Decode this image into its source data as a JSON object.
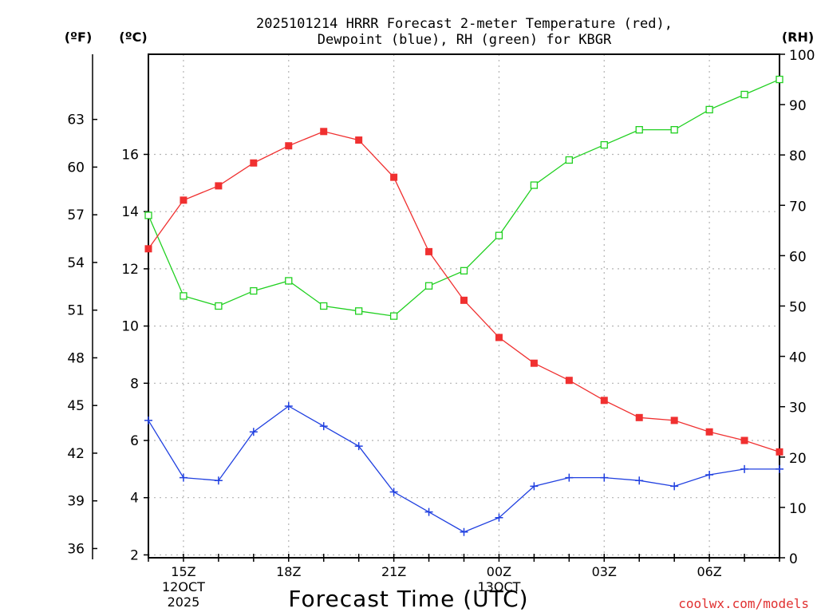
{
  "chart_data": {
    "type": "line",
    "title_line1": "2025101214 HRRR Forecast 2-meter Temperature (red),",
    "title_line2": "Dewpoint (blue), RH (green) for KBGR",
    "xlabel": "Forecast Time (UTC)",
    "credit": "coolwx.com/models",
    "unit_f": "(ºF)",
    "unit_c": "(ºC)",
    "unit_rh": "(RH)",
    "x_hours": [
      14,
      15,
      16,
      17,
      18,
      19,
      20,
      21,
      22,
      23,
      24,
      25,
      26,
      27,
      28,
      29,
      30,
      31,
      32
    ],
    "xlim": [
      14,
      32
    ],
    "x_ticks": [
      {
        "hour": 15,
        "label": "15Z",
        "sub1": "12OCT",
        "sub2": "2025"
      },
      {
        "hour": 18,
        "label": "18Z",
        "sub1": "",
        "sub2": ""
      },
      {
        "hour": 21,
        "label": "21Z",
        "sub1": "",
        "sub2": ""
      },
      {
        "hour": 24,
        "label": "00Z",
        "sub1": "13OCT",
        "sub2": ""
      },
      {
        "hour": 27,
        "label": "03Z",
        "sub1": "",
        "sub2": ""
      },
      {
        "hour": 30,
        "label": "06Z",
        "sub1": "",
        "sub2": ""
      }
    ],
    "ylim_c": [
      1.9,
      19.5
    ],
    "y_ticks_c": [
      2,
      4,
      6,
      8,
      10,
      12,
      14,
      16
    ],
    "y_ticks_f": [
      36,
      39,
      42,
      45,
      48,
      51,
      54,
      57,
      60,
      63
    ],
    "ylim_rh": [
      0,
      100
    ],
    "y_ticks_rh": [
      0,
      10,
      20,
      30,
      40,
      50,
      60,
      70,
      80,
      90,
      100
    ],
    "colors": {
      "temperature": "#f03030",
      "dewpoint": "#2040e0",
      "rh": "#20d020",
      "grid": "#b4b4b4"
    },
    "series": [
      {
        "name": "Temperature",
        "units": "C",
        "values": [
          12.7,
          14.4,
          14.9,
          15.7,
          16.3,
          16.8,
          16.5,
          15.2,
          12.6,
          10.9,
          9.6,
          8.7,
          8.1,
          7.4,
          6.8,
          6.7,
          6.3,
          6.0,
          5.6
        ]
      },
      {
        "name": "Dewpoint",
        "units": "C",
        "values": [
          6.7,
          4.7,
          4.6,
          6.3,
          7.2,
          6.5,
          5.8,
          4.2,
          3.5,
          2.8,
          3.3,
          4.4,
          4.7,
          4.7,
          4.6,
          4.4,
          4.8,
          5.0,
          5.0
        ]
      },
      {
        "name": "RH",
        "units": "%",
        "values": [
          68,
          52,
          50,
          53,
          55,
          50,
          49,
          48,
          54,
          57,
          64,
          74,
          79,
          82,
          85,
          85,
          89,
          92,
          95
        ]
      }
    ]
  }
}
